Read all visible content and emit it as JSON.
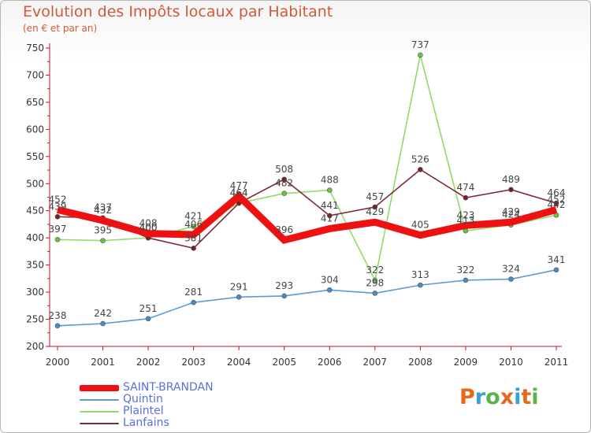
{
  "header": {
    "title": "Evolution des Impôts locaux par Habitant",
    "subtitle": "(en € et par an)"
  },
  "brand": {
    "name": "Proxiti",
    "letters": [
      "P",
      "r",
      "o",
      "x",
      "i",
      "t",
      "i"
    ],
    "letter_colors": [
      "#e8681a",
      "#3aa0d8",
      "#58b548",
      "#e8681a",
      "#3aa0d8",
      "#e8681a",
      "#58b548"
    ]
  },
  "chart_data": {
    "type": "line",
    "title": "Evolution des Impôts locaux par Habitant",
    "subtitle": "(en € et par an)",
    "xlabel": "",
    "ylabel": "",
    "categories": [
      "2000",
      "2001",
      "2002",
      "2003",
      "2004",
      "2005",
      "2006",
      "2007",
      "2008",
      "2009",
      "2010",
      "2011"
    ],
    "ylim": [
      200,
      750
    ],
    "yticks": [
      200,
      250,
      300,
      350,
      400,
      450,
      500,
      550,
      600,
      650,
      700,
      750
    ],
    "grid": false,
    "legend": "bottom-left",
    "series": [
      {
        "name": "SAINT-BRANDAN",
        "color": "#ee1111",
        "emphasis": "thick",
        "values": [
          452,
          432,
          408,
          406,
          477,
          396,
          417,
          429,
          405,
          423,
          429,
          452
        ],
        "labels": [
          "452",
          "432",
          "408",
          "406",
          "477",
          "396",
          "417",
          "429",
          "405",
          "423",
          "429",
          "452"
        ]
      },
      {
        "name": "Quintin",
        "color": "#5b9bd5",
        "marker": "#4a8ac4",
        "values": [
          238,
          242,
          251,
          281,
          291,
          293,
          304,
          298,
          313,
          322,
          324,
          341
        ],
        "labels": [
          "238",
          "242",
          "251",
          "281",
          "291",
          "293",
          "304",
          "298",
          "313",
          "322",
          "324",
          "341"
        ]
      },
      {
        "name": "Plaintel",
        "color": "#8fdc6a",
        "marker": "#6cc23f",
        "values": [
          397,
          395,
          400,
          421,
          464,
          482,
          488,
          322,
          737,
          413,
          424,
          442
        ],
        "labels": [
          "397",
          "395",
          "400",
          "421",
          "464",
          "482",
          "488",
          "322",
          "737",
          "413",
          "424",
          "442"
        ]
      },
      {
        "name": "Lanfains",
        "color": "#7b2d35",
        "marker": "#7b1e2a",
        "values": [
          439,
          437,
          400,
          381,
          464,
          508,
          441,
          457,
          526,
          474,
          489,
          464
        ],
        "labels": [
          "439",
          "437",
          "400",
          "381",
          "464",
          "508",
          "441",
          "457",
          "526",
          "474",
          "489",
          "464"
        ]
      }
    ]
  }
}
